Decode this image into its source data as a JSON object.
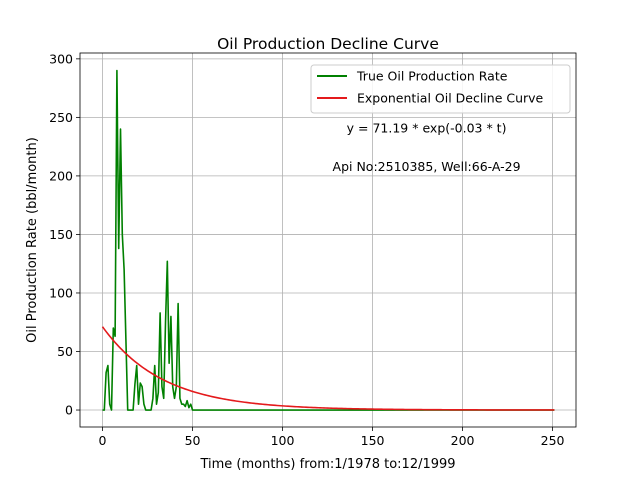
{
  "chart_data": {
    "type": "line",
    "title": "Oil Production Decline Curve",
    "xlabel": "Time (months) from:1/1978 to:12/1999",
    "ylabel": "Oil Production Rate (bbl/month)",
    "xlim": [
      -12.5,
      263
    ],
    "ylim": [
      -14.5,
      305
    ],
    "xticks": [
      0,
      50,
      100,
      150,
      200,
      250
    ],
    "yticks": [
      0,
      50,
      100,
      150,
      200,
      250,
      300
    ],
    "grid": true,
    "legend_position": "top-right",
    "annotations": [
      {
        "text": "y = 71.19 * exp(-0.03 * t)",
        "x": 180,
        "y": 241
      },
      {
        "text": "Api No:2510385, Well:66-A-29",
        "x": 180,
        "y": 208
      }
    ],
    "series": [
      {
        "name": "True Oil Production Rate",
        "color": "#008000",
        "points": [
          [
            0,
            0
          ],
          [
            1,
            0
          ],
          [
            2,
            32
          ],
          [
            3,
            38
          ],
          [
            4,
            5
          ],
          [
            5,
            0
          ],
          [
            6,
            70
          ],
          [
            7,
            63
          ],
          [
            8,
            290
          ],
          [
            9,
            138
          ],
          [
            10,
            240
          ],
          [
            11,
            150
          ],
          [
            12,
            120
          ],
          [
            13,
            60
          ],
          [
            14,
            0
          ],
          [
            15,
            0
          ],
          [
            16,
            0
          ],
          [
            17,
            0
          ],
          [
            18,
            22
          ],
          [
            19,
            38
          ],
          [
            20,
            5
          ],
          [
            21,
            23
          ],
          [
            22,
            20
          ],
          [
            23,
            5
          ],
          [
            24,
            0
          ],
          [
            25,
            0
          ],
          [
            26,
            0
          ],
          [
            27,
            0
          ],
          [
            28,
            10
          ],
          [
            29,
            38
          ],
          [
            30,
            5
          ],
          [
            31,
            15
          ],
          [
            32,
            83
          ],
          [
            33,
            20
          ],
          [
            34,
            10
          ],
          [
            35,
            75
          ],
          [
            36,
            127
          ],
          [
            37,
            40
          ],
          [
            38,
            80
          ],
          [
            39,
            20
          ],
          [
            40,
            10
          ],
          [
            41,
            20
          ],
          [
            42,
            91
          ],
          [
            43,
            10
          ],
          [
            44,
            5
          ],
          [
            45,
            5
          ],
          [
            46,
            3
          ],
          [
            47,
            8
          ],
          [
            48,
            2
          ],
          [
            49,
            5
          ],
          [
            50,
            0
          ],
          [
            51,
            0
          ],
          [
            52,
            0
          ],
          [
            60,
            0
          ],
          [
            100,
            0
          ],
          [
            150,
            0
          ],
          [
            200,
            0
          ],
          [
            251,
            0
          ]
        ]
      },
      {
        "name": "Exponential Oil Decline Curve",
        "color": "#e41a1c",
        "function": {
          "a": 71.19,
          "b": -0.03
        },
        "x_range": [
          0,
          251
        ]
      }
    ]
  }
}
